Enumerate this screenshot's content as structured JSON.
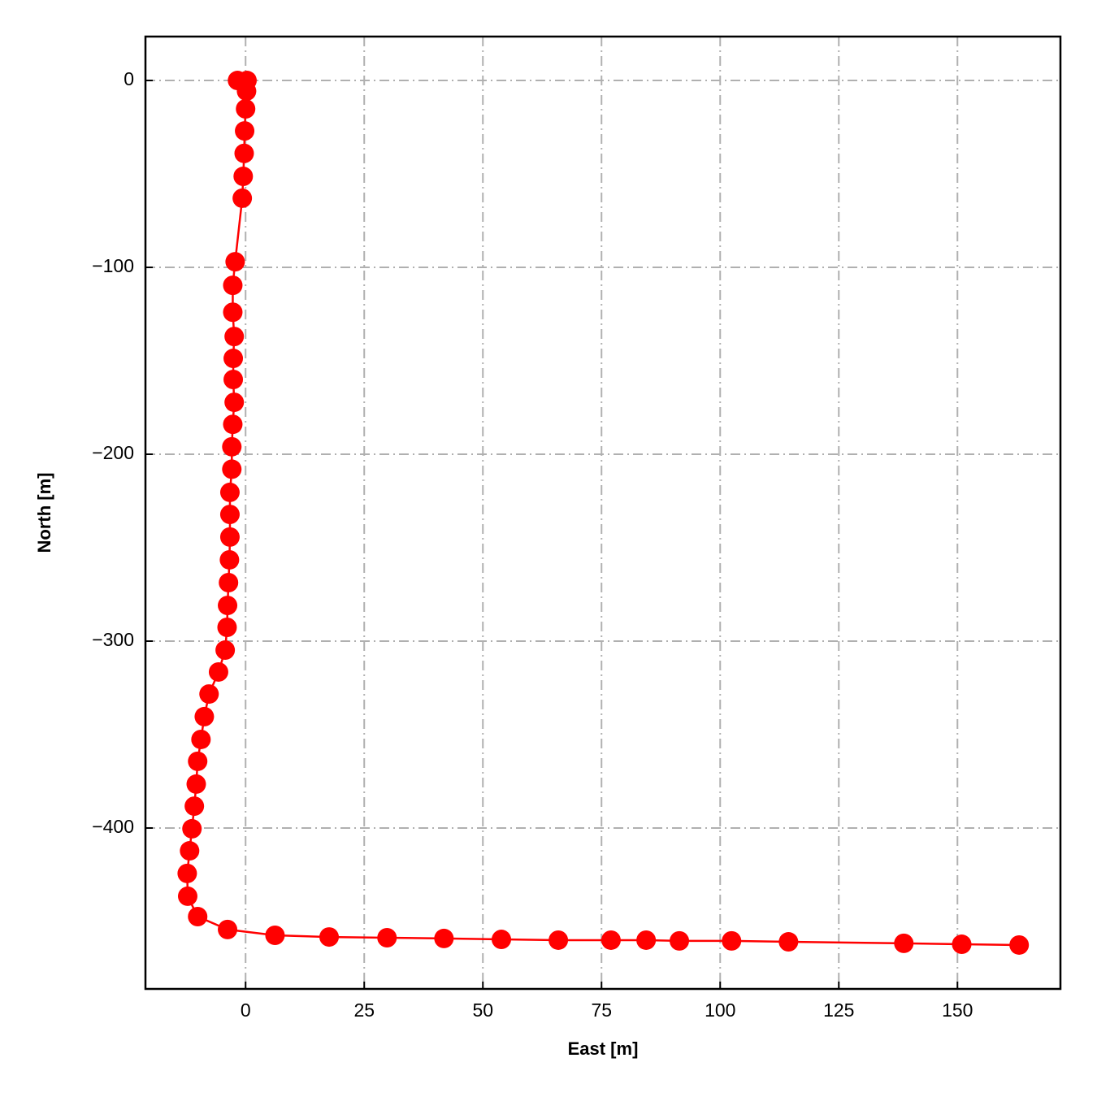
{
  "chart_data": {
    "type": "line",
    "xlabel": "East [m]",
    "ylabel": "North [m]",
    "color": "#ff0000",
    "x": [
      -1.7,
      0.3,
      0.2,
      0.0,
      -0.2,
      -0.3,
      -0.5,
      -0.7,
      -2.2,
      -2.7,
      -2.7,
      -2.4,
      -2.6,
      -2.6,
      -2.4,
      -2.7,
      -2.9,
      -2.9,
      -3.3,
      -3.3,
      -3.3,
      -3.4,
      -3.6,
      -3.8,
      -3.9,
      -4.3,
      -5.7,
      -7.7,
      -8.7,
      -9.4,
      -10.1,
      -10.4,
      -10.8,
      -11.3,
      -11.8,
      -12.3,
      -12.2,
      -10.1,
      -3.8,
      6.2,
      17.6,
      29.8,
      41.8,
      53.9,
      65.9,
      77.0,
      84.4,
      91.4,
      102.4,
      114.4,
      138.7,
      150.9,
      163.0
    ],
    "values": [
      0.0,
      0.0,
      -5.7,
      -15.2,
      -27.0,
      -39.0,
      -51.3,
      -63.0,
      -97.0,
      -109.6,
      -124.0,
      -137.0,
      -148.7,
      -160.0,
      -172.2,
      -184.0,
      -196.0,
      -208.0,
      -220.4,
      -232.2,
      -244.3,
      -256.5,
      -268.7,
      -280.9,
      -292.6,
      -304.8,
      -316.5,
      -328.3,
      -340.4,
      -352.6,
      -364.3,
      -376.5,
      -388.3,
      -400.4,
      -412.2,
      -424.3,
      -436.5,
      -447.4,
      -454.3,
      -457.4,
      -458.3,
      -458.7,
      -459.1,
      -459.6,
      -460.0,
      -460.0,
      -460.0,
      -460.4,
      -460.4,
      -460.9,
      -461.7,
      -462.2,
      -462.6
    ],
    "xlim": [
      -21.1,
      171.7
    ],
    "ylim": [
      -486.1,
      23.5
    ],
    "xticks": [
      0,
      25,
      50,
      75,
      100,
      125,
      150
    ],
    "yticks": [
      {
        "value": -400,
        "label": "−400"
      },
      {
        "value": -300,
        "label": "−300"
      },
      {
        "value": -200,
        "label": "−200"
      },
      {
        "value": -100,
        "label": "−100"
      },
      0
    ],
    "grid": true
  }
}
